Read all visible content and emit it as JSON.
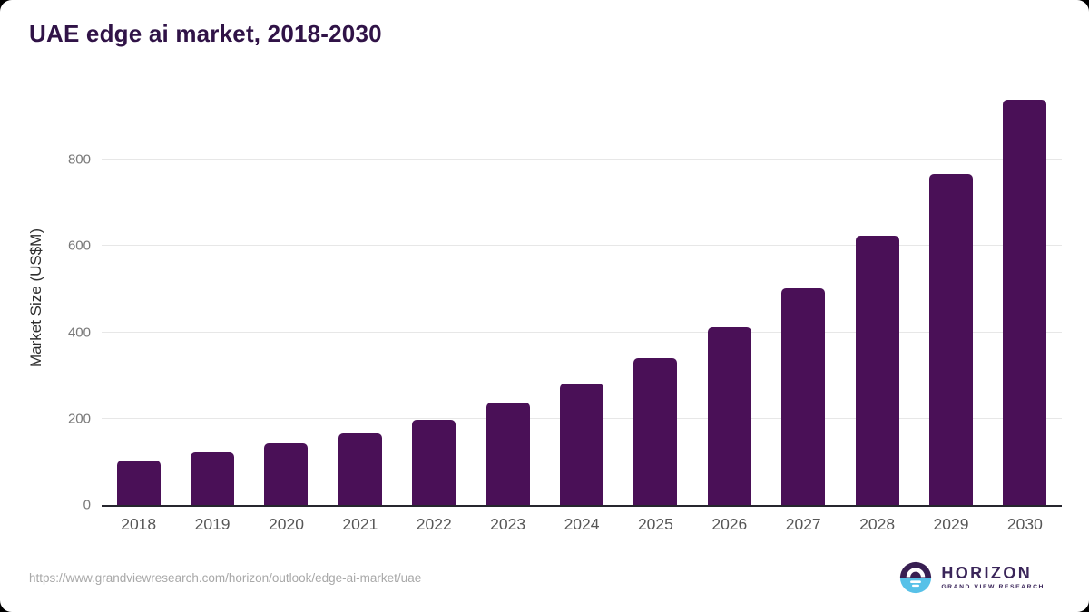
{
  "chart_data": {
    "type": "bar",
    "title": "UAE edge ai market, 2018-2030",
    "categories": [
      "2018",
      "2019",
      "2020",
      "2021",
      "2022",
      "2023",
      "2024",
      "2025",
      "2026",
      "2027",
      "2028",
      "2029",
      "2030"
    ],
    "values": [
      104,
      121,
      142,
      166,
      198,
      237,
      281,
      341,
      411,
      503,
      623,
      766,
      938
    ],
    "xlabel": "",
    "ylabel": "Market Size (US$M)",
    "ylim": [
      0,
      960
    ],
    "yticks": [
      0,
      200,
      400,
      600,
      800
    ],
    "grid": true,
    "legend": false,
    "bar_color": "#4a1057"
  },
  "colors": {
    "title": "#301347",
    "bar": "#4a1057",
    "gridline": "#e7e7e7",
    "axis_line": "#26262e",
    "tick_text": "#787878",
    "logo_purple": "#3a2559",
    "logo_icon_purple": "#381f52",
    "logo_icon_blue": "#57c1e8"
  },
  "footer": {
    "source_url": "https://www.grandviewresearch.com/horizon/outlook/edge-ai-market/uae",
    "logo": {
      "name": "HORIZON",
      "subtitle": "GRAND VIEW RESEARCH",
      "icon": "horizon-sun-over-water-icon"
    }
  }
}
